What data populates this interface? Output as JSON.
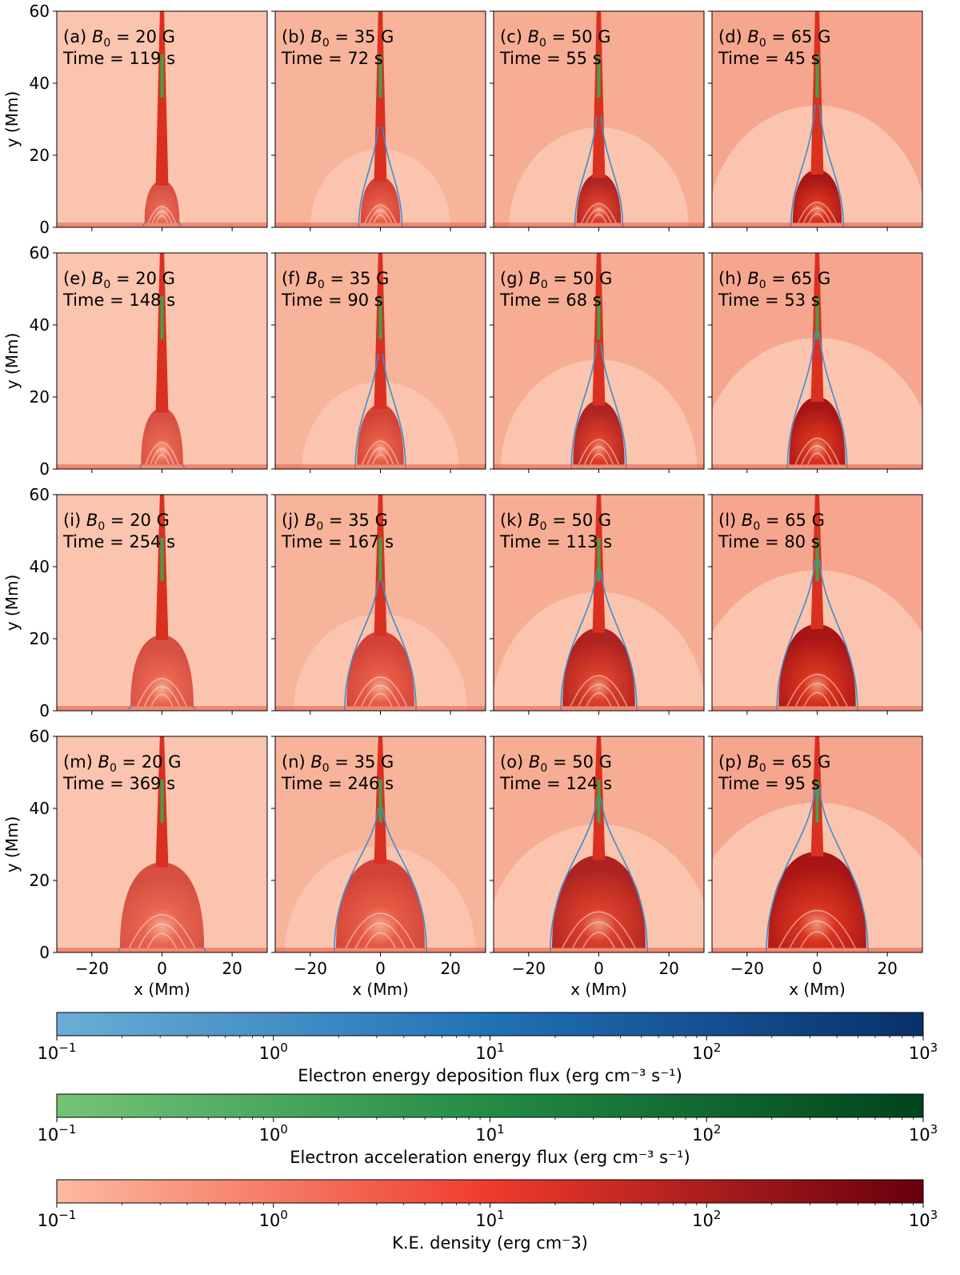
{
  "chart_data": {
    "type": "heatmap",
    "description_panels": "4x4 grid of 2D simulation snapshots",
    "xlabel": "x (Mm)",
    "ylabel": "y (Mm)",
    "xlim": [
      -30,
      30
    ],
    "ylim": [
      0,
      60
    ],
    "xticks": [
      -20,
      0,
      20
    ],
    "xtick_labels": [
      "−20",
      "0",
      "20"
    ],
    "yticks": [
      0,
      20,
      40,
      60
    ],
    "ytick_labels": [
      "0",
      "20",
      "40",
      "60"
    ],
    "panels": [
      {
        "label": "(a)",
        "B0": 20,
        "b_text": "= 20 G",
        "time_text": "Time = 119 s",
        "time_s": 119
      },
      {
        "label": "(b)",
        "B0": 35,
        "b_text": "= 35 G",
        "time_text": "Time = 72 s",
        "time_s": 72
      },
      {
        "label": "(c)",
        "B0": 50,
        "b_text": "= 50 G",
        "time_text": "Time = 55 s",
        "time_s": 55
      },
      {
        "label": "(d)",
        "B0": 65,
        "b_text": "= 65 G",
        "time_text": "Time = 45 s",
        "time_s": 45
      },
      {
        "label": "(e)",
        "B0": 20,
        "b_text": "= 20 G",
        "time_text": "Time = 148 s",
        "time_s": 148
      },
      {
        "label": "(f)",
        "B0": 35,
        "b_text": "= 35 G",
        "time_text": "Time = 90 s",
        "time_s": 90
      },
      {
        "label": "(g)",
        "B0": 50,
        "b_text": "= 50 G",
        "time_text": "Time = 68 s",
        "time_s": 68
      },
      {
        "label": "(h)",
        "B0": 65,
        "b_text": "= 65 G",
        "time_text": "Time = 53 s",
        "time_s": 53
      },
      {
        "label": "(i)",
        "B0": 20,
        "b_text": "= 20 G",
        "time_text": "Time = 254 s",
        "time_s": 254
      },
      {
        "label": "(j)",
        "B0": 35,
        "b_text": "= 35 G",
        "time_text": "Time = 167 s",
        "time_s": 167
      },
      {
        "label": "(k)",
        "B0": 50,
        "b_text": "= 50 G",
        "time_text": "Time = 113 s",
        "time_s": 113
      },
      {
        "label": "(l)",
        "B0": 65,
        "b_text": "= 65 G",
        "time_text": "Time = 80 s",
        "time_s": 80
      },
      {
        "label": "(m)",
        "B0": 20,
        "b_text": "= 20 G",
        "time_text": "Time = 369 s",
        "time_s": 369
      },
      {
        "label": "(n)",
        "B0": 35,
        "b_text": "= 35 G",
        "time_text": "Time = 246 s",
        "time_s": 246
      },
      {
        "label": "(o)",
        "B0": 50,
        "b_text": "= 50 G",
        "time_text": "Time = 124 s",
        "time_s": 124
      },
      {
        "label": "(p)",
        "B0": 65,
        "b_text": "= 65 G",
        "time_text": "Time = 95 s",
        "time_s": 95
      }
    ],
    "colorbars": [
      {
        "name": "Electron energy deposition flux",
        "label": "Electron energy deposition flux (erg cm⁻³ s⁻¹)",
        "scale": "log",
        "range": [
          0.1,
          1000
        ],
        "colors": [
          "#6aaed6",
          "#2171b5",
          "#08306b"
        ]
      },
      {
        "name": "Electron acceleration energy flux",
        "label": "Electron acceleration energy flux (erg cm⁻³ s⁻¹)",
        "scale": "log",
        "range": [
          0.1,
          1000
        ],
        "colors": [
          "#74c476",
          "#238b45",
          "#00441b"
        ]
      },
      {
        "name": "K.E. density",
        "label": "K.E. density (erg cm⁻3)",
        "scale": "log",
        "range": [
          0.1,
          1000
        ],
        "colors": [
          "#fcbba1",
          "#ef3b2c",
          "#67000d"
        ]
      }
    ],
    "colorbar_tick_exponents": [
      "−1",
      "0",
      "1",
      "2",
      "3"
    ],
    "colorbar_tick_base": "10",
    "b_symbol": "B",
    "b_subscript": "0"
  }
}
